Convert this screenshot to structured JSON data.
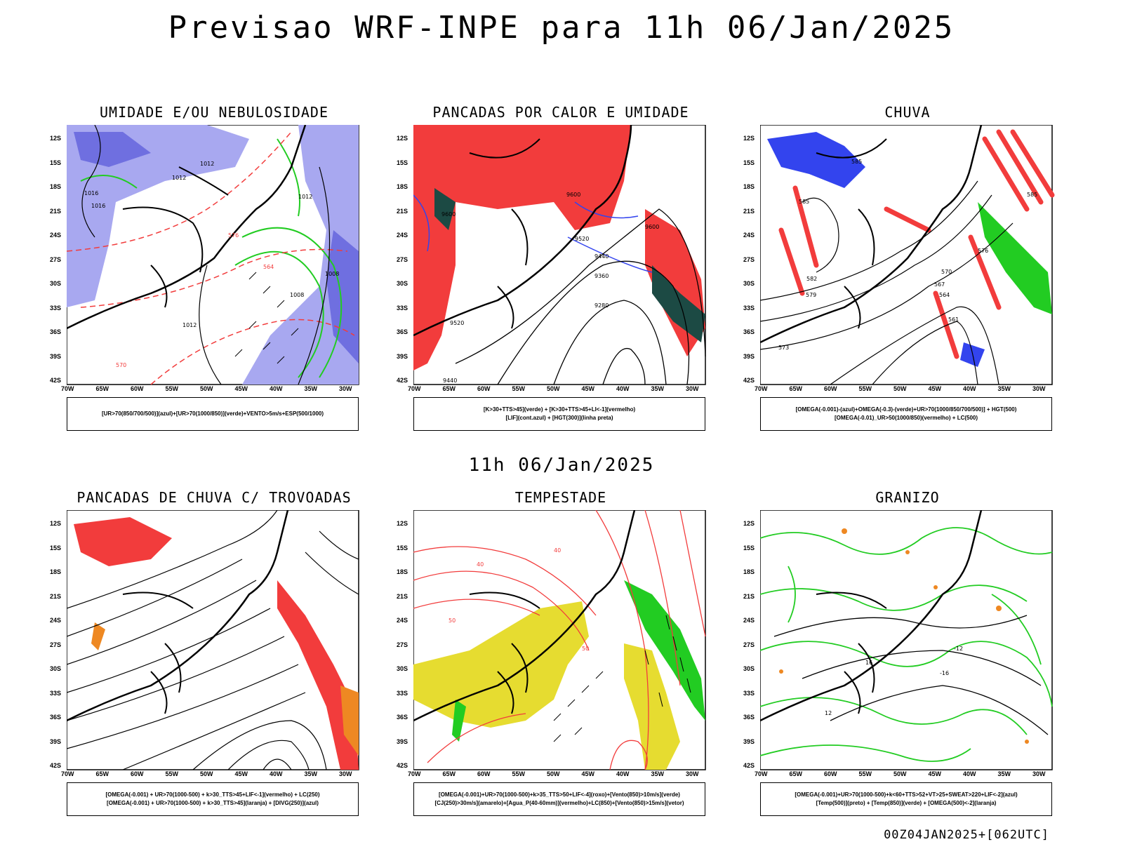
{
  "header": {
    "title": "Previsao WRF-INPE  para 11h 06/Jan/2025"
  },
  "middle_time": "11h 06/Jan/2025",
  "footer": "00Z04JAN2025+[062UTC]",
  "axes": {
    "lat_labels": [
      "12S",
      "15S",
      "18S",
      "21S",
      "24S",
      "27S",
      "30S",
      "33S",
      "36S",
      "39S",
      "42S"
    ],
    "lon_labels": [
      "70W",
      "65W",
      "60W",
      "55W",
      "50W",
      "45W",
      "40W",
      "35W",
      "30W"
    ]
  },
  "panels": [
    {
      "title": "UMIDADE E/OU NEBULOSIDADE",
      "legend": [
        "[UR>70(850/700/500)](azul)+[UR>70(1000/850)](verde)+VENTO>5m/s+ESP(500/1000)"
      ],
      "contour_labels": [
        "1012",
        "1012",
        "1012",
        "1016",
        "1008",
        "1008",
        "1012",
        "576",
        "570",
        "564",
        "1016"
      ]
    },
    {
      "title": "PANCADAS POR CALOR E UMIDADE",
      "legend": [
        "[K>30+TTS>45](verde) + [K>30+TTS>45+LI<-1](vermelho)",
        "[LIF](cont.azul) + [HGT(300)](linha preta)"
      ],
      "contour_labels": [
        "9600",
        "9600",
        "9600",
        "9520",
        "9440",
        "9360",
        "9280",
        "9520",
        "9440"
      ]
    },
    {
      "title": "CHUVA",
      "legend": [
        "[OMEGA(-0.001)-(azul)+OMEGA(-0.3)-(verde)+UR>70(1000/850/700/500)] + HGT(500)",
        "[OMEGA(-0.01)_UR>50(1000/850)(vermelho) + LC(500)"
      ],
      "contour_labels": [
        "585",
        "585",
        "585",
        "579",
        "576",
        "570",
        "567",
        "564",
        "561",
        "582",
        "573"
      ]
    },
    {
      "title": "PANCADAS DE CHUVA C/ TROVOADAS",
      "legend": [
        "[OMEGA(-0.001) + UR>70(1000-500) + k>30_TTS>45+LIF<-1](vermelho) + LC(250)",
        "[OMEGA(-0.001) + UR>70(1000-500) + k>30_TTS>45](laranja) + [DIVG(250)](azul)"
      ],
      "contour_labels": []
    },
    {
      "title": "TEMPESTADE",
      "legend": [
        "[OMEGA(-0.001)+UR>70(1000-500)+k>35_TTS>50+LIF<-4](roxo)+[Vento(850)>10m/s](verde)",
        "[CJ(250)>30m/s](amarelo)+[Agua_P(40-60mm)](vermelho)+LC(850)+[Vento(850)>15m/s](vetor)"
      ],
      "contour_labels": [
        "50",
        "50",
        "40",
        "40"
      ]
    },
    {
      "title": "GRANIZO",
      "legend": [
        "[OMEGA(-0.001)+UR>70(1000-500)+k<60+TTS>52+VT>25+SWEAT>220+LIF<-2](azul)",
        "[Temp(500)](preto) + [Temp(850)](verde) + [OMEGA(500)<-2](laranja)"
      ],
      "contour_labels": [
        "-12",
        "-16",
        "12",
        "16"
      ]
    }
  ],
  "colors": {
    "red": "#f23c3c",
    "green": "#22cc22",
    "blue": "#3344ee",
    "lightblue": "#a8a8f0",
    "yellow": "#e6dc30",
    "orange": "#ee8822",
    "darkteal": "#1c4a44",
    "black": "#000000"
  }
}
